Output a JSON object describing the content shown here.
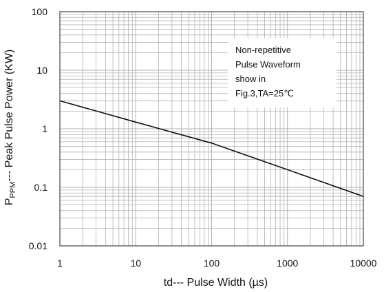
{
  "chart_data": {
    "type": "line",
    "x_scale": "log",
    "y_scale": "log",
    "xlim": [
      1,
      10000
    ],
    "ylim": [
      0.01,
      100
    ],
    "x_ticks": [
      "1",
      "10",
      "100",
      "1000",
      "10000"
    ],
    "y_ticks": [
      "0.01",
      "0.1",
      "1",
      "10",
      "100"
    ],
    "xlabel": "td--- Pulse Width (µs)",
    "ylabel": {
      "prefix": "P",
      "subscript": "PPM",
      "rest": "--- Peak Pulse Power (KW)"
    },
    "grid": true,
    "series": [
      {
        "x": [
          1,
          10,
          100,
          1000,
          10000
        ],
        "y": [
          3.0,
          1.3,
          0.57,
          0.2,
          0.07
        ]
      }
    ],
    "annotation": [
      "Non-repetitive",
      "Pulse Waveform",
      "show in",
      "Fig.3,TA=25℃"
    ],
    "colors": {
      "line": "#111111",
      "grid": "#b0b0b0",
      "frame": "#444444"
    }
  }
}
